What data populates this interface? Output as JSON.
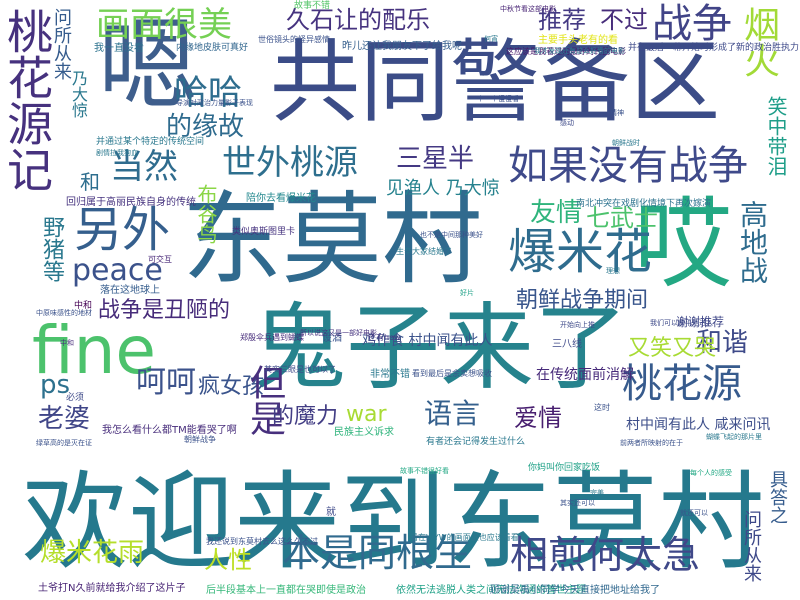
{
  "words": [
    {
      "text": "共同警备区",
      "color": "#3b4c87"
    },
    {
      "text": "欢迎来到东莫村",
      "color": "#25798d"
    },
    {
      "text": "东莫村",
      "color": "#306a8e"
    },
    {
      "text": "鬼子来了",
      "color": "#26838d"
    },
    {
      "text": "fine",
      "color": "#4cc26c"
    },
    {
      "text": "哎",
      "color": "#23a883"
    },
    {
      "text": "嗯",
      "color": "#3e5e8c"
    },
    {
      "text": "桃花源记",
      "color": "#46317e"
    },
    {
      "text": "画面很美",
      "color": "#75d054"
    },
    {
      "text": "久石让的配乐",
      "color": "#46337f"
    },
    {
      "text": "推荐",
      "color": "#443a83"
    },
    {
      "text": "不过",
      "color": "#472d7b"
    },
    {
      "text": "战争",
      "color": "#414487"
    },
    {
      "text": "烟火",
      "color": "#a2da37"
    },
    {
      "text": "哈哈",
      "color": "#2e6d8e"
    },
    {
      "text": "的缘故",
      "color": "#2f6b8e"
    },
    {
      "text": "如果没有战争",
      "color": "#3f4a8a"
    },
    {
      "text": "世外桃源",
      "color": "#2e6f8e"
    },
    {
      "text": "三星半",
      "color": "#443983"
    },
    {
      "text": "当然",
      "color": "#2f6c8e"
    },
    {
      "text": "和",
      "color": "#2e6e8e"
    },
    {
      "text": "另外",
      "color": "#355f8d"
    },
    {
      "text": "peace",
      "color": "#3b528b"
    },
    {
      "text": "爆米花",
      "color": "#2f6c8e"
    },
    {
      "text": "高地战",
      "color": "#2f6c8e"
    },
    {
      "text": "友情",
      "color": "#2fb47c"
    },
    {
      "text": "七武士",
      "color": "#4cc26c"
    },
    {
      "text": "朝鲜战争期间",
      "color": "#39568c"
    },
    {
      "text": "战争是丑陋的",
      "color": "#472c7a"
    },
    {
      "text": "和谐",
      "color": "#3e4a89"
    },
    {
      "text": "又笑又哭",
      "color": "#a8db34"
    },
    {
      "text": "桃花源",
      "color": "#375b8d"
    },
    {
      "text": "ps",
      "color": "#2d718e"
    },
    {
      "text": "呵呵",
      "color": "#3b528b"
    },
    {
      "text": "疯女孩",
      "color": "#3a548c"
    },
    {
      "text": "但是",
      "color": "#472f7d"
    },
    {
      "text": "的魔力",
      "color": "#433e85"
    },
    {
      "text": "war",
      "color": "#a8db34"
    },
    {
      "text": "语言",
      "color": "#35608d"
    },
    {
      "text": "爱情",
      "color": "#481f70"
    },
    {
      "text": "老婆",
      "color": "#404688"
    },
    {
      "text": "野猪等",
      "color": "#2a788e"
    },
    {
      "text": "爆米花雨",
      "color": "#b5de2b"
    },
    {
      "text": "人性",
      "color": "#bddf26"
    },
    {
      "text": "本是同根生",
      "color": "#306a8e"
    },
    {
      "text": "相煎何太急",
      "color": "#3f4889"
    },
    {
      "text": "笑中带泪",
      "color": "#1f9e89"
    },
    {
      "text": "乃大惊",
      "color": "#2a788e"
    },
    {
      "text": "问所从来",
      "color": "#365c8d"
    },
    {
      "text": "具答之",
      "color": "#365c8d"
    },
    {
      "text": "问所从来",
      "color": "#3e4989"
    },
    {
      "text": "布谷鸟",
      "color": "#8bd646"
    },
    {
      "text": "见渔人 乃大惊",
      "color": "#26828e"
    },
    {
      "text": "村中闻有此人 咸来问讯",
      "color": "#3d4e8a"
    },
    {
      "text": "鸡作食 村中闻有此人",
      "color": "#3b528b"
    },
    {
      "text": "在传统面前消解",
      "color": "#472a7a"
    },
    {
      "text": "谢谢推荐",
      "color": "#3f4788"
    },
    {
      "text": "故事不错",
      "color": "#54c568"
    },
    {
      "text": "主要手头老有的看",
      "color": "#e2e418"
    },
    {
      "text": "昨儿还让我朋友下了给我呢",
      "color": "#355f8d"
    },
    {
      "text": "我一直没看",
      "color": "#2c728e"
    },
    {
      "text": "内缘地皮肤可真好",
      "color": "#31668e"
    },
    {
      "text": "非常不错",
      "color": "#2a788e"
    },
    {
      "text": "陪你去看爆米花",
      "color": "#23888e"
    },
    {
      "text": "我怎么看什么都TM能看哭了啊",
      "color": "#472d7b"
    },
    {
      "text": "土爷打N久前就给我介绍了这片子",
      "color": "#482475"
    },
    {
      "text": "后半段基本上一直都在哭即使是政治",
      "color": "#35b779"
    },
    {
      "text": "依然无法逃脱人类之间无法沟通的普世主题",
      "color": "#1fa187"
    },
    {
      "text": "顾谢吴禹小同学今天直接把地址给我了",
      "color": "#31688e"
    },
    {
      "text": "南北冲突在戏剧化情境下再次嫁演",
      "color": "#2c728e"
    },
    {
      "text": "并在最后一幕开始时形成了新的政治胜执力",
      "color": "#3e4a89"
    },
    {
      "text": "落在这地球上",
      "color": "#365d8d"
    },
    {
      "text": "民族主义诉求",
      "color": "#2fb47c"
    },
    {
      "text": "三八线",
      "color": "#3e4989"
    },
    {
      "text": "设酒",
      "color": "#3a548c"
    },
    {
      "text": "中和",
      "color": "#440154"
    },
    {
      "text": "必须",
      "color": "#3e4a89"
    },
    {
      "text": "还有how",
      "color": "#443983"
    },
    {
      "text": "这时",
      "color": "#3b528b"
    },
    {
      "text": "就",
      "color": "#3e4989"
    },
    {
      "text": "回归属于高丽民族自身的传统",
      "color": "#46337f"
    },
    {
      "text": "并通过某个特定的传统空间",
      "color": "#2a788e"
    },
    {
      "text": "类似奥斯图里卡",
      "color": "#46337f"
    },
    {
      "text": "可交互",
      "color": "#482878"
    },
    {
      "text": "生辛大家结婚了",
      "color": "#2a788e"
    },
    {
      "text": "郑殷伞兵遇到蝴蝶",
      "color": "#472d7b"
    },
    {
      "text": "其实三眼是也可以了",
      "color": "#3e4a89"
    },
    {
      "text": "看到最后是余卖想吸收",
      "color": "#3b528b"
    },
    {
      "text": "有者还会记得发生过什么",
      "color": "#2a788e"
    },
    {
      "text": "我还说到东莫村去么这么久不过",
      "color": "#3b528b"
    },
    {
      "text": "看在WYW的画面上也应该看看",
      "color": "#2a788e"
    },
    {
      "text": "你妈叫你回家吃饭",
      "color": "#1fa187"
    },
    {
      "text": "这应该是我看过的最好的韩国电影",
      "color": "#48186a"
    },
    {
      "text": "我才发现还有这么好看的电影",
      "color": "#2a788e"
    },
    {
      "text": "中秋节看这部电影",
      "color": "#482475"
    },
    {
      "text": "所以说这又是一部好电影",
      "color": "#46337f"
    },
    {
      "text": "故事不错很好看",
      "color": "#22a884"
    },
    {
      "text": "世俗镜头的怪异感情",
      "color": "#3b528b"
    },
    {
      "text": "朝鲜战争",
      "color": "#3b528b"
    },
    {
      "text": "导演对政治力量影子表现",
      "color": "#3b528b"
    },
    {
      "text": "我们可以和平地进入",
      "color": "#3e4a89"
    },
    {
      "text": "剧情拉我狗血",
      "color": "#2a788e"
    },
    {
      "text": "中原味感性的地材",
      "color": "#3b528b"
    },
    {
      "text": "中和",
      "color": "#472d7b"
    },
    {
      "text": "绿草高的是灭在证",
      "color": "#3b528b"
    },
    {
      "text": "蝴蝶飞起的那片里",
      "color": "#2a788e"
    },
    {
      "text": "就还可以",
      "color": "#3b528b"
    },
    {
      "text": "何宵",
      "color": "#2a788e"
    },
    {
      "text": "理想",
      "color": "#2a788e"
    },
    {
      "text": "精神",
      "color": "#3b528b"
    },
    {
      "text": "完美",
      "color": "#2a788e"
    },
    {
      "text": "感动",
      "color": "#3e4a89"
    },
    {
      "text": "一个一个慢慢看",
      "color": "#3b528b"
    },
    {
      "text": "好片",
      "color": "#1fa187"
    },
    {
      "text": "也不是中间那种美好",
      "color": "#3b528b"
    },
    {
      "text": "开始向上推",
      "color": "#3e4a89"
    },
    {
      "text": "朝鲜战时",
      "color": "#2a788e"
    },
    {
      "text": "其实还可以",
      "color": "#3b528b"
    },
    {
      "text": "每个人的感受",
      "color": "#22a884"
    },
    {
      "text": "前两者所映射的在于",
      "color": "#3b528b"
    }
  ]
}
